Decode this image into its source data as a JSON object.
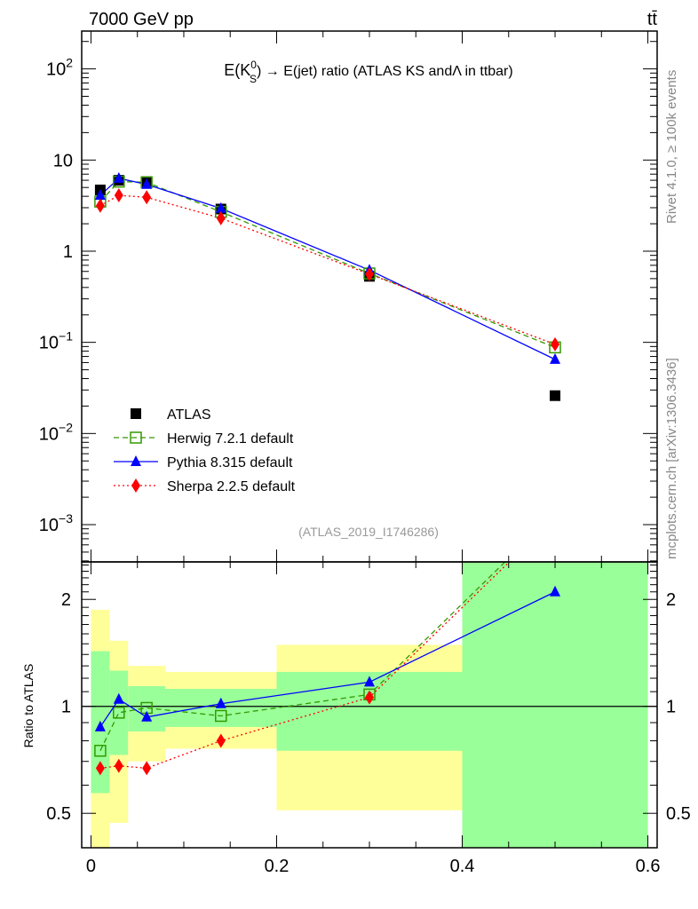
{
  "header": {
    "energy_label": "7000 GeV pp",
    "process_label": "tt̄"
  },
  "side_labels": {
    "rivet": "Rivet 4.1.0, ≥ 100k events",
    "mcplots": "mcplots.cern.ch [arXiv:1306.3436]"
  },
  "colors": {
    "atlas": "#000000",
    "herwig": "#339900",
    "pythia": "#0000ff",
    "sherpa": "#ff0000",
    "band_inner": "#99ff99",
    "band_outer": "#ffff99"
  },
  "chart_data": [
    {
      "type": "scatter",
      "title": {
        "prefix": "E(K",
        "sup": "0",
        "sub": "S",
        "suffix": ") → E(jet) ratio (ATLAS KS andΛ in ttbar)"
      },
      "analysis_label": "(ATLAS_2019_I1746286)",
      "xlabel": "",
      "ylabel": "",
      "yscale": "log",
      "xlim": [
        -0.01,
        0.61
      ],
      "ylim": [
        0.00039,
        260
      ],
      "ytick_labels": [
        {
          "value": 100,
          "base": "10",
          "exp": "2"
        },
        {
          "value": 10,
          "base": "10",
          "exp": ""
        },
        {
          "value": 1,
          "base": "1",
          "exp": ""
        },
        {
          "value": 0.1,
          "base": "10",
          "exp": "−1"
        },
        {
          "value": 0.01,
          "base": "10",
          "exp": "−2"
        },
        {
          "value": 0.001,
          "base": "10",
          "exp": "−3"
        }
      ],
      "legend_position": "bottom-left",
      "x": [
        0.01,
        0.03,
        0.06,
        0.14,
        0.3,
        0.5
      ],
      "series": [
        {
          "key": "atlas",
          "name": "ATLAS",
          "marker": "square",
          "line": "none",
          "values": [
            4.7,
            6.0,
            5.8,
            2.9,
            0.53,
            0.026
          ]
        },
        {
          "key": "herwig",
          "name": "Herwig 7.2.1 default",
          "marker": "open-square",
          "line": "dashed",
          "values": [
            3.5,
            5.8,
            5.7,
            2.7,
            0.57,
            0.088
          ]
        },
        {
          "key": "pythia",
          "name": "Pythia 8.315 default",
          "marker": "triangle",
          "line": "solid",
          "values": [
            4.1,
            6.3,
            5.4,
            2.95,
            0.62,
            0.065
          ]
        },
        {
          "key": "sherpa",
          "name": "Sherpa 2.2.5 default",
          "marker": "diamond",
          "line": "dotted",
          "values": [
            3.15,
            4.1,
            3.9,
            2.3,
            0.56,
            0.095
          ]
        }
      ]
    },
    {
      "type": "line",
      "ylabel": "Ratio to ATLAS",
      "yscale": "log",
      "xlim": [
        -0.01,
        0.61
      ],
      "ylim": [
        0.4,
        2.55
      ],
      "xtick_labels": [
        {
          "value": 0,
          "label": "0"
        },
        {
          "value": 0.2,
          "label": "0.2"
        },
        {
          "value": 0.4,
          "label": "0.4"
        },
        {
          "value": 0.6,
          "label": "0.6"
        }
      ],
      "ytick_labels": [
        {
          "value": 2,
          "label": "2"
        },
        {
          "value": 1,
          "label": "1"
        },
        {
          "value": 0.5,
          "label": "0.5"
        }
      ],
      "bin_edges": [
        0,
        0.02,
        0.04,
        0.08,
        0.2,
        0.4,
        0.6
      ],
      "band_inner": [
        [
          0.57,
          1.43
        ],
        [
          0.73,
          1.26
        ],
        [
          0.85,
          1.14
        ],
        [
          0.875,
          1.12
        ],
        [
          0.75,
          1.25
        ],
        [
          0.01,
          100
        ]
      ],
      "band_outer": [
        [
          0.3,
          1.87
        ],
        [
          0.47,
          1.53
        ],
        [
          0.7,
          1.3
        ],
        [
          0.76,
          1.25
        ],
        [
          0.51,
          1.49
        ],
        [
          0.01,
          100
        ]
      ],
      "x": [
        0.01,
        0.03,
        0.06,
        0.14,
        0.3,
        0.5
      ],
      "series": [
        {
          "key": "herwig",
          "name": "Herwig 7.2.1 default",
          "values": [
            0.75,
            0.96,
            0.99,
            0.94,
            1.08,
            3.5
          ]
        },
        {
          "key": "pythia",
          "name": "Pythia 8.315 default",
          "values": [
            0.875,
            1.047,
            0.933,
            1.017,
            1.17,
            2.1
          ]
        },
        {
          "key": "sherpa",
          "name": "Sherpa 2.2.5 default",
          "values": [
            0.67,
            0.68,
            0.67,
            0.8,
            1.06,
            3.4
          ]
        }
      ]
    }
  ]
}
